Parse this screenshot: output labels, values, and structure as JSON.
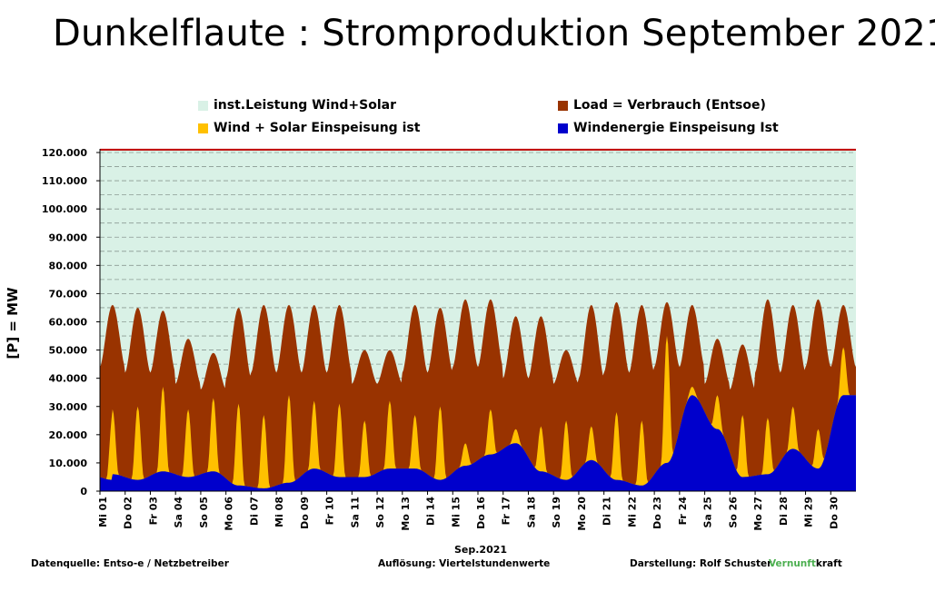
{
  "title": "Dunkelflaute : Stromproduktion September 2021",
  "footer": {
    "source": "Datenquelle:  Entso-e  / Netzbetreiber",
    "resolution": "Auflösung: Viertelstundenwerte",
    "author": "Darstellung:  Rolf Schuster",
    "brand_green": "Vernunft",
    "brand_rest": "kraft"
  },
  "colors": {
    "installed": "#d9f1e6",
    "load": "#993300",
    "wind_solar": "#ffc000",
    "wind": "#0000cc",
    "cap_line": "#c00000",
    "brand_green": "#4caf50"
  },
  "chart_data": {
    "type": "area",
    "title": "Dunkelflaute : Stromproduktion September 2021",
    "xlabel": "Sep.2021",
    "ylabel": "[P] = MW",
    "ylim": [
      0,
      120000
    ],
    "yticks": [
      "0",
      "10.000",
      "20.000",
      "30.000",
      "40.000",
      "50.000",
      "60.000",
      "70.000",
      "80.000",
      "90.000",
      "100.000",
      "110.000",
      "120.000"
    ],
    "grid": true,
    "legend_position": "top",
    "categories": [
      "Mi 01",
      "Do 02",
      "Fr 03",
      "Sa 04",
      "So 05",
      "Mo 06",
      "Di 07",
      "Mi 08",
      "Do 09",
      "Fr 10",
      "Sa 11",
      "So 12",
      "Mo 13",
      "Di 14",
      "Mi 15",
      "Do 16",
      "Fr 17",
      "Sa 18",
      "So 19",
      "Mo 20",
      "Di 21",
      "Mi 22",
      "Do 23",
      "Fr 24",
      "Sa 25",
      "So 26",
      "Mo 27",
      "Di 28",
      "Mi 29",
      "Do 30"
    ],
    "tick_labels": [
      "Mi 01",
      "Do 02",
      "Fr 03",
      "Sa 04",
      "So 05",
      "Mo 06",
      "Di 07",
      "Mi 08",
      "Do 09",
      "Fr 10",
      "Sa 11",
      "So 12",
      "Mo 13",
      "Di 14",
      "Mi 15",
      "Do 16",
      "Fr 17",
      "Sa 18",
      "So 19",
      "Mo 20",
      "Di 21",
      "Mi 22",
      "Do 23",
      "Fr 24",
      "Sa 25",
      "So 26",
      "Mo 27",
      "Di 28",
      "Mi 29",
      "Do 30"
    ],
    "series": [
      {
        "name": "inst.Leistung Wind+Solar",
        "type": "area",
        "daily": [
          121000,
          121000,
          121000,
          121000,
          121000,
          121000,
          121000,
          121000,
          121000,
          121000,
          121000,
          121000,
          121000,
          121000,
          121000,
          121000,
          121000,
          121000,
          121000,
          121000,
          121000,
          121000,
          121000,
          121000,
          121000,
          121000,
          121000,
          121000,
          121000,
          121000
        ]
      },
      {
        "name": "Load =  Verbrauch (Entsoe)",
        "type": "area",
        "daily_peak": [
          66000,
          65000,
          64000,
          54000,
          49000,
          65000,
          66000,
          66000,
          66000,
          66000,
          50000,
          50000,
          66000,
          65000,
          68000,
          68000,
          62000,
          62000,
          50000,
          66000,
          67000,
          66000,
          67000,
          66000,
          54000,
          52000,
          68000,
          66000,
          68000,
          66000
        ],
        "daily_min": [
          44000,
          42000,
          42000,
          38000,
          36000,
          40000,
          42000,
          42000,
          42000,
          42000,
          38000,
          38000,
          42000,
          42000,
          44000,
          44000,
          40000,
          40000,
          38000,
          40000,
          42000,
          42000,
          44000,
          44000,
          38000,
          36000,
          42000,
          42000,
          44000,
          44000
        ]
      },
      {
        "name": "Wind + Solar Einspeisung ist",
        "type": "area",
        "daily_peak": [
          29000,
          30000,
          37000,
          29000,
          33000,
          31000,
          27000,
          34000,
          32000,
          31000,
          25000,
          32000,
          27000,
          30000,
          17000,
          29000,
          22000,
          23000,
          25000,
          23000,
          28000,
          25000,
          55000,
          37000,
          34000,
          27000,
          26000,
          30000,
          22000,
          51000
        ]
      },
      {
        "name": "Windenergie Einspeisung Ist",
        "type": "area",
        "daily": [
          6000,
          4000,
          7000,
          5000,
          7000,
          2000,
          1000,
          3000,
          8000,
          5000,
          5000,
          8000,
          8000,
          4000,
          9000,
          13000,
          17000,
          7000,
          4000,
          11000,
          4000,
          2000,
          10000,
          34000,
          22000,
          5000,
          6000,
          15000,
          8000,
          34000
        ]
      }
    ]
  }
}
